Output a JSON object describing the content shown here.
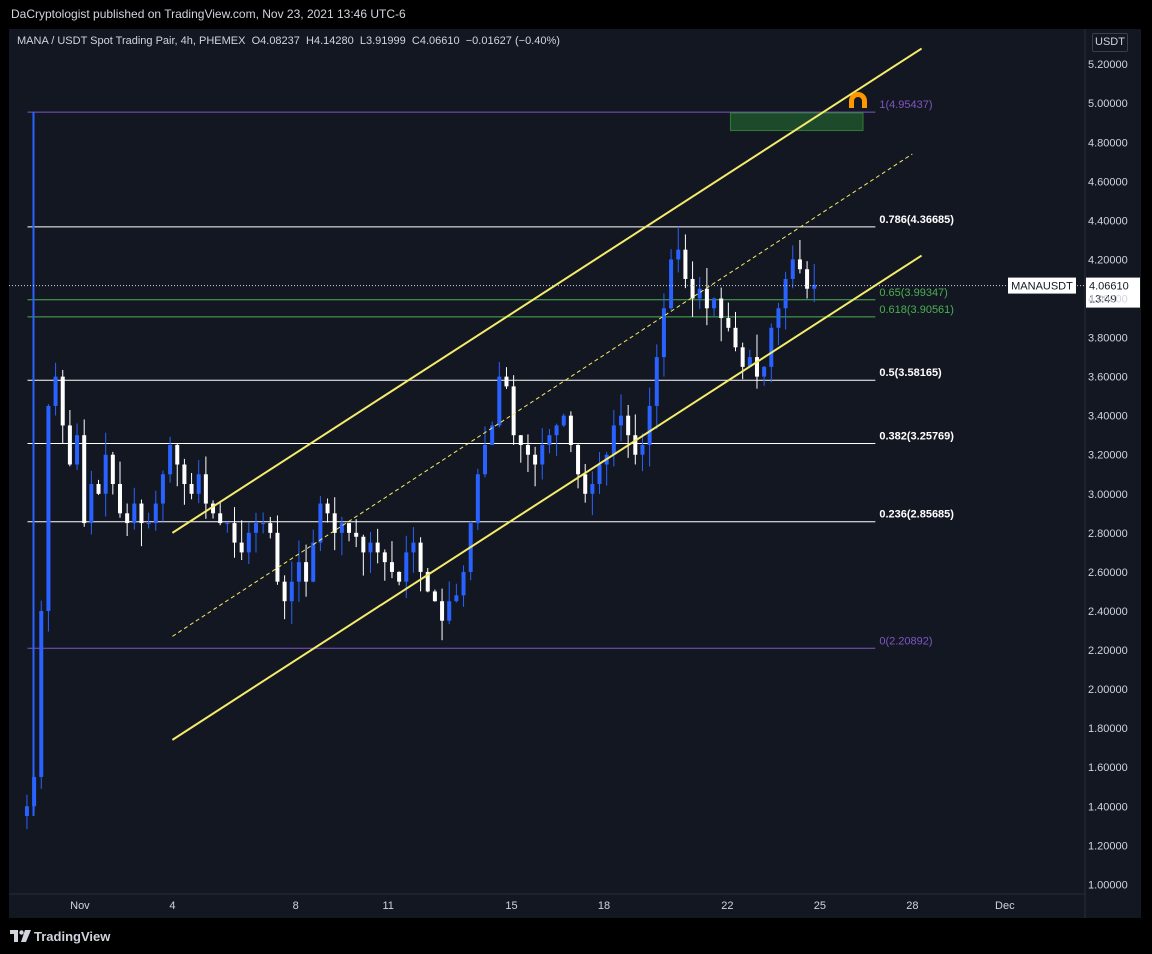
{
  "header": {
    "publisher": "DaCryptologist published on TradingView.com, Nov 23, 2021 13:46 UTC-6"
  },
  "legend": {
    "symbol": "MANA / USDT Spot Trading Pair, 4h, PHEMEX",
    "o_label": "O",
    "o": "4.08237",
    "h_label": "H",
    "h": "4.14280",
    "l_label": "L",
    "l": "3.91999",
    "c_label": "C",
    "c": "4.06610",
    "change": "−0.01627 (−0.40%)"
  },
  "price_axis": {
    "unit": "USDT"
  },
  "footer": {
    "brand": "TradingView"
  },
  "colors": {
    "background": "#131722",
    "up": "#2962ff",
    "down": "#ffffff",
    "channel": "#f5eb6b",
    "fib_white": "#ffffff",
    "fib_green": "#4caf50",
    "fib_purple": "#7e57c2",
    "zone": "#1e4a2c",
    "alert": "#ff9800"
  },
  "chart_data": {
    "type": "candlestick",
    "title": "MANA / USDT Spot Trading Pair, 4h, PHEMEX",
    "symbol_tag": "MANAUSDT",
    "last_price": 4.0661,
    "last_price_label": "4.06610",
    "countdown": "13:49",
    "x_ticks": [
      {
        "label": "Nov",
        "day": 1
      },
      {
        "label": "4",
        "day": 4
      },
      {
        "label": "8",
        "day": 8
      },
      {
        "label": "11",
        "day": 11
      },
      {
        "label": "15",
        "day": 15
      },
      {
        "label": "18",
        "day": 18
      },
      {
        "label": "22",
        "day": 22
      },
      {
        "label": "25",
        "day": 25
      },
      {
        "label": "28",
        "day": 28
      },
      {
        "label": "Dec",
        "day": 31
      }
    ],
    "y_ticks": [
      "1.00000",
      "1.20000",
      "1.40000",
      "1.60000",
      "1.80000",
      "2.00000",
      "2.20000",
      "2.40000",
      "2.60000",
      "2.80000",
      "3.00000",
      "3.20000",
      "3.40000",
      "3.60000",
      "3.80000",
      "4.00000",
      "4.20000",
      "4.40000",
      "4.60000",
      "4.80000",
      "5.00000",
      "5.20000"
    ],
    "ylim": [
      0.92,
      5.38
    ],
    "xlim_days": [
      -1.3,
      33.6
    ],
    "fib_levels": [
      {
        "ratio": "1",
        "price": 4.95437,
        "label": "1(4.95437)",
        "color": "#7e57c2"
      },
      {
        "ratio": "0.786",
        "price": 4.36685,
        "label": "0.786(4.36685)",
        "color": "#ffffff"
      },
      {
        "ratio": "0.65",
        "price": 3.99347,
        "label": "0.65(3.99347)",
        "color": "#4caf50"
      },
      {
        "ratio": "0.618",
        "price": 3.90561,
        "label": "0.618(3.90561)",
        "color": "#4caf50"
      },
      {
        "ratio": "0.5",
        "price": 3.58165,
        "label": "0.5(3.58165)",
        "color": "#ffffff"
      },
      {
        "ratio": "0.382",
        "price": 3.25769,
        "label": "0.382(3.25769)",
        "color": "#ffffff"
      },
      {
        "ratio": "0.236",
        "price": 2.85685,
        "label": "0.236(2.85685)",
        "color": "#ffffff"
      },
      {
        "ratio": "0",
        "price": 2.20892,
        "label": "0(2.20892)",
        "color": "#7e57c2"
      }
    ],
    "fib_range_days": [
      -0.7,
      26.8
    ],
    "channel": {
      "upper": {
        "from": [
          4.0,
          2.8
        ],
        "to": [
          28.3,
          5.28
        ]
      },
      "middle": {
        "from": [
          4.0,
          2.27
        ],
        "to": [
          28.0,
          4.74
        ]
      },
      "lower": {
        "from": [
          4.0,
          1.74
        ],
        "to": [
          28.3,
          4.22
        ]
      }
    },
    "target_zone": {
      "day_from": 22.1,
      "day_to": 26.4,
      "price_low": 4.86,
      "price_high": 4.95
    },
    "candle_dates": [
      "Oct 29",
      "Oct 30",
      "Oct 31",
      "Nov 1",
      "Nov 2",
      "Nov 3",
      "Nov 4",
      "Nov 5",
      "Nov 6",
      "Nov 7",
      "Nov 8",
      "Nov 9",
      "Nov 10",
      "Nov 11",
      "Nov 12",
      "Nov 13",
      "Nov 14",
      "Nov 15",
      "Nov 16",
      "Nov 17",
      "Nov 18",
      "Nov 19",
      "Nov 20",
      "Nov 21",
      "Nov 22",
      "Nov 23"
    ],
    "candles_per_day": 6,
    "close_path": [
      1.35,
      1.4,
      1.55,
      2.4,
      3.45,
      3.6,
      3.35,
      3.15,
      3.3,
      2.85,
      3.05,
      3.0,
      3.2,
      3.05,
      2.9,
      2.85,
      2.95,
      2.85,
      2.85,
      2.95,
      3.1,
      3.25,
      3.15,
      3.05,
      3.0,
      3.1,
      2.95,
      2.9,
      2.85,
      2.85,
      2.75,
      2.7,
      2.8,
      2.85,
      2.85,
      2.8,
      2.55,
      2.45,
      2.55,
      2.65,
      2.55,
      2.75,
      2.95,
      2.9,
      2.8,
      2.85,
      2.8,
      2.78,
      2.7,
      2.75,
      2.7,
      2.65,
      2.6,
      2.55,
      2.7,
      2.75,
      2.6,
      2.5,
      2.45,
      2.35,
      2.45,
      2.48,
      2.6,
      2.85,
      3.1,
      3.25,
      3.35,
      3.6,
      3.55,
      3.3,
      3.25,
      3.2,
      3.15,
      3.25,
      3.3,
      3.35,
      3.4,
      3.25,
      3.1,
      3.0,
      3.05,
      3.15,
      3.2,
      3.35,
      3.4,
      3.3,
      3.2,
      3.25,
      3.45,
      3.7,
      3.95,
      4.2,
      4.25,
      4.1,
      4.0,
      4.05,
      3.95,
      4.0,
      3.9,
      3.85,
      3.75,
      3.65,
      3.7,
      3.6,
      3.65,
      3.85,
      3.95,
      4.1,
      4.2,
      4.15,
      4.05,
      4.07
    ]
  }
}
